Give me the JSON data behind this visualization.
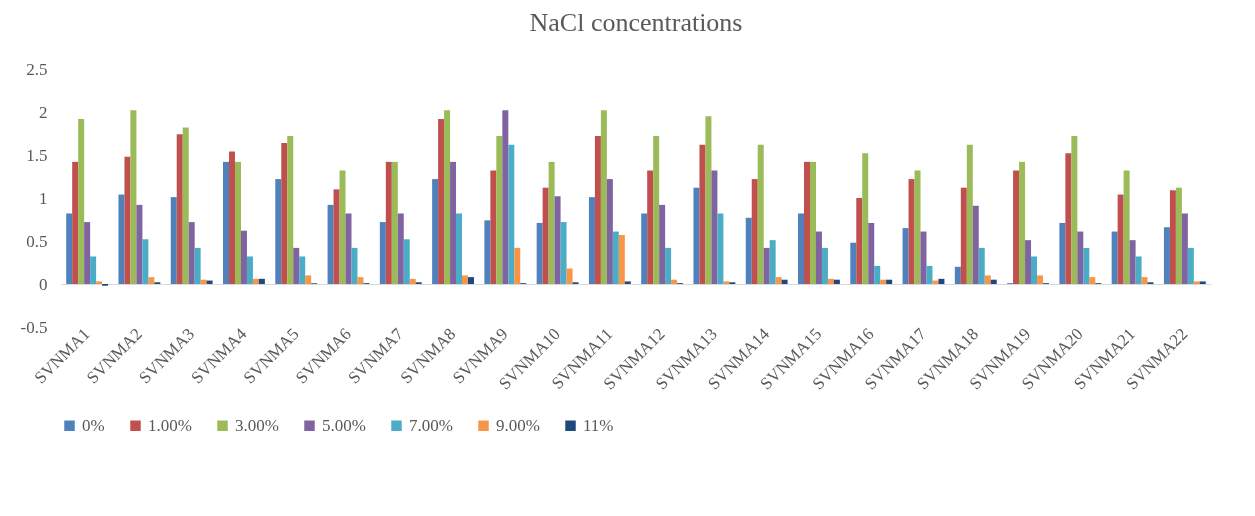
{
  "chart_data": {
    "type": "bar",
    "title": "NaCl concentrations",
    "categories": [
      "SVNMA1",
      "SVNMA2",
      "SVNMA3",
      "SVNMA4",
      "SVNMA5",
      "SVNMA6",
      "SVNMA7",
      "SVNMA8",
      "SVNMA9",
      "SVNMA10",
      "SVNMA11",
      "SVNMA12",
      "SVNMA13",
      "SVNMA14",
      "SVNMA15",
      "SVNMA16",
      "SVNMA17",
      "SVNMA18",
      "SVNMA19",
      "SVNMA20",
      "SVNMA21",
      "SVNMA22"
    ],
    "series": [
      {
        "name": "0%",
        "color": "#4f81bd",
        "values": [
          0.82,
          1.04,
          1.01,
          1.42,
          1.22,
          0.92,
          0.72,
          1.22,
          0.74,
          0.71,
          1.01,
          0.82,
          1.12,
          0.77,
          0.82,
          0.48,
          0.65,
          0.2,
          0.01,
          0.71,
          0.61,
          0.66
        ]
      },
      {
        "name": "1.00%",
        "color": "#c0504d",
        "values": [
          1.42,
          1.48,
          1.74,
          1.54,
          1.64,
          1.1,
          1.42,
          1.92,
          1.32,
          1.12,
          1.72,
          1.32,
          1.62,
          1.22,
          1.42,
          1.0,
          1.22,
          1.12,
          1.32,
          1.52,
          1.04,
          1.09
        ]
      },
      {
        "name": "3.00%",
        "color": "#9bbb59",
        "values": [
          1.92,
          2.02,
          1.82,
          1.42,
          1.72,
          1.32,
          1.42,
          2.02,
          1.72,
          1.42,
          2.02,
          1.72,
          1.95,
          1.62,
          1.42,
          1.52,
          1.32,
          1.62,
          1.42,
          1.72,
          1.32,
          1.12
        ]
      },
      {
        "name": "5.00%",
        "color": "#8064a2",
        "values": [
          0.72,
          0.92,
          0.72,
          0.62,
          0.42,
          0.82,
          0.82,
          1.42,
          2.02,
          1.02,
          1.22,
          0.92,
          1.32,
          0.42,
          0.61,
          0.71,
          0.61,
          0.91,
          0.51,
          0.61,
          0.51,
          0.82
        ]
      },
      {
        "name": "7.00%",
        "color": "#4bacc6",
        "values": [
          0.32,
          0.52,
          0.42,
          0.32,
          0.32,
          0.42,
          0.52,
          0.82,
          1.62,
          0.72,
          0.61,
          0.42,
          0.82,
          0.51,
          0.42,
          0.21,
          0.21,
          0.42,
          0.32,
          0.42,
          0.32,
          0.42
        ]
      },
      {
        "name": "9.00%",
        "color": "#f79646",
        "values": [
          0.03,
          0.08,
          0.05,
          0.06,
          0.1,
          0.08,
          0.06,
          0.1,
          0.42,
          0.18,
          0.57,
          0.05,
          0.03,
          0.08,
          0.06,
          0.05,
          0.04,
          0.1,
          0.1,
          0.08,
          0.08,
          0.03
        ]
      },
      {
        "name": "11%",
        "color": "#1f497d",
        "values": [
          -0.02,
          0.02,
          0.04,
          0.06,
          0.01,
          0.01,
          0.02,
          0.08,
          0.01,
          0.02,
          0.03,
          0.01,
          0.02,
          0.05,
          0.05,
          0.05,
          0.06,
          0.05,
          0.01,
          0.01,
          0.02,
          0.03
        ]
      }
    ],
    "ylim": [
      -0.5,
      2.5
    ],
    "yticks": [
      -0.5,
      0,
      0.5,
      1,
      1.5,
      2,
      2.5
    ],
    "legend": "bottom"
  }
}
